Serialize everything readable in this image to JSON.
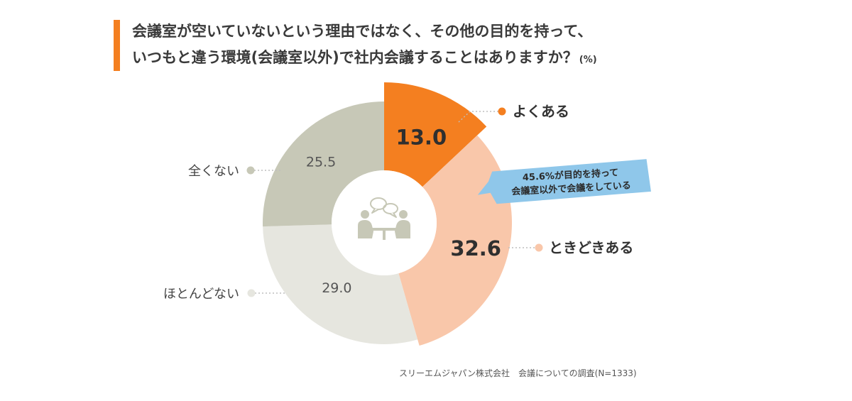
{
  "title": {
    "line1": "会議室が空いていないという理由ではなく、その他の目的を持って、",
    "line2": "いつもと違う環境(会議室以外)で社内会議することはありますか？",
    "unit": "(%)"
  },
  "chart_data": {
    "type": "pie",
    "title": "会議室が空いていないという理由ではなく、その他の目的を持って、いつもと違う環境(会議室以外)で社内会議することはありますか？",
    "unit": "(%)",
    "slices": [
      {
        "label": "よくある",
        "value": 13.0,
        "display": "13.0",
        "color": "#f47f20"
      },
      {
        "label": "ときどきある",
        "value": 32.6,
        "display": "32.6",
        "color": "#f9c7aa"
      },
      {
        "label": "ほとんどない",
        "value": 29.0,
        "display": "29.0",
        "color": "#e6e6df"
      },
      {
        "label": "全くない",
        "value": 25.5,
        "display": "25.5",
        "color": "#c7c8b7"
      }
    ],
    "callout": {
      "line1": "45.6%が目的を持って",
      "line2": "会議室以外で会議をしている",
      "color": "#8fc7ea"
    },
    "center_icon": "meeting-people-icon"
  },
  "colors": {
    "accent": "#f47f20",
    "icon": "#c7c8b7",
    "leader": "#bdbdbd"
  },
  "source": "スリーエムジャパン株式会社　会議についての調査(N=1333)"
}
